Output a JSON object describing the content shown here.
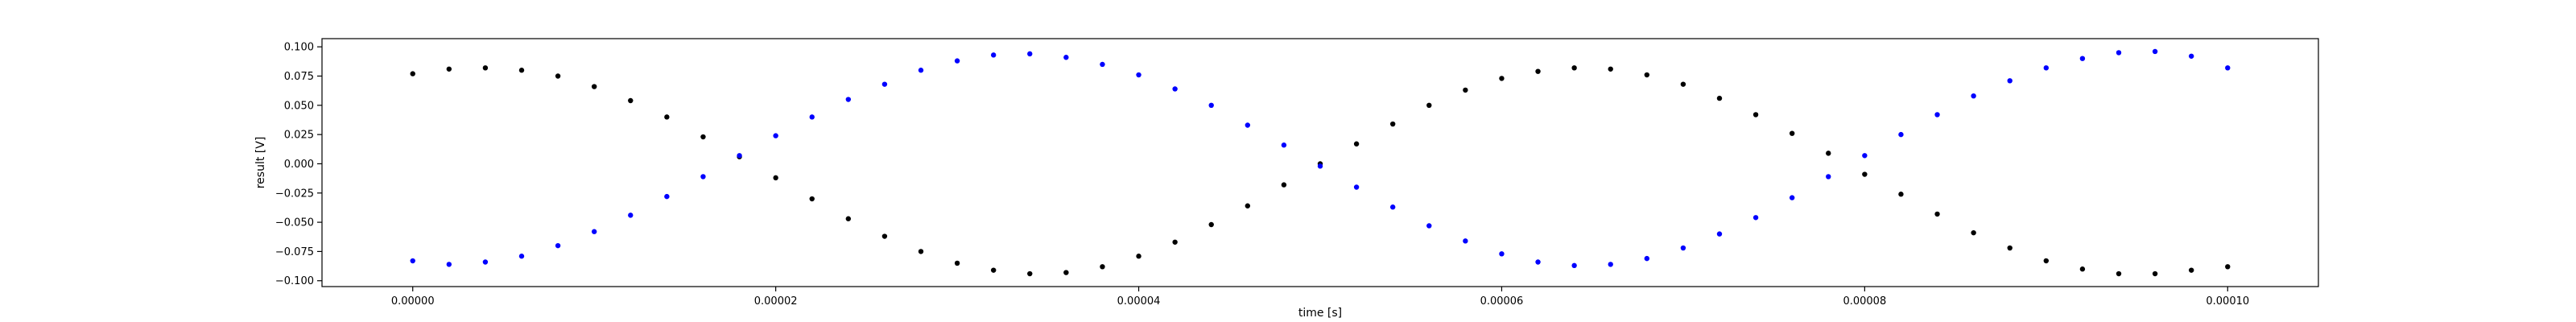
{
  "chart_data": {
    "type": "scatter",
    "title": "",
    "xlabel": "time [s]",
    "ylabel": "result [V]",
    "xlim": [
      -5e-06,
      0.000105
    ],
    "ylim": [
      -0.105,
      0.107
    ],
    "grid": false,
    "legend": "none",
    "x_ticks": [
      {
        "value": 0.0,
        "label": "0.00000"
      },
      {
        "value": 2e-05,
        "label": "0.00002"
      },
      {
        "value": 4e-05,
        "label": "0.00004"
      },
      {
        "value": 6e-05,
        "label": "0.00006"
      },
      {
        "value": 8e-05,
        "label": "0.00008"
      },
      {
        "value": 0.0001,
        "label": "0.00010"
      }
    ],
    "y_ticks": [
      {
        "value": 0.1,
        "label": "0.100"
      },
      {
        "value": 0.075,
        "label": "0.075"
      },
      {
        "value": 0.05,
        "label": "0.050"
      },
      {
        "value": 0.025,
        "label": "0.025"
      },
      {
        "value": 0.0,
        "label": "0.000"
      },
      {
        "value": -0.025,
        "label": "−0.025"
      },
      {
        "value": -0.05,
        "label": "−0.050"
      },
      {
        "value": -0.075,
        "label": "−0.075"
      },
      {
        "value": -0.1,
        "label": "−0.100"
      }
    ],
    "series": [
      {
        "color": "#000000",
        "marker": "dot",
        "x": [
          0.0,
          2e-06,
          4e-06,
          6e-06,
          8e-06,
          1e-05,
          1.2e-05,
          1.4e-05,
          1.6e-05,
          1.8e-05,
          2e-05,
          2.2e-05,
          2.4e-05,
          2.6e-05,
          2.8e-05,
          3e-05,
          3.2e-05,
          3.4e-05,
          3.6e-05,
          3.8e-05,
          4e-05,
          4.2e-05,
          4.4e-05,
          4.6e-05,
          4.8e-05,
          5e-05,
          5.2e-05,
          5.4e-05,
          5.6e-05,
          5.8e-05,
          6e-05,
          6.2e-05,
          6.4e-05,
          6.6e-05,
          6.8e-05,
          7e-05,
          7.2e-05,
          7.4e-05,
          7.6e-05,
          7.8e-05,
          8e-05,
          8.2e-05,
          8.4e-05,
          8.6e-05,
          8.8e-05,
          9e-05,
          9.2e-05,
          9.4e-05,
          9.6e-05,
          9.8e-05,
          0.0001
        ],
        "y": [
          0.077,
          0.081,
          0.082,
          0.08,
          0.075,
          0.066,
          0.054,
          0.04,
          0.023,
          0.006,
          -0.012,
          -0.03,
          -0.047,
          -0.062,
          -0.075,
          -0.085,
          -0.091,
          -0.094,
          -0.093,
          -0.088,
          -0.079,
          -0.067,
          -0.052,
          -0.036,
          -0.018,
          0.0,
          0.017,
          0.034,
          0.05,
          0.063,
          0.073,
          0.079,
          0.082,
          0.081,
          0.076,
          0.068,
          0.056,
          0.042,
          0.026,
          0.009,
          -0.009,
          -0.026,
          -0.043,
          -0.059,
          -0.072,
          -0.083,
          -0.09,
          -0.094,
          -0.094,
          -0.091,
          -0.088
        ]
      },
      {
        "color": "#0000ff",
        "marker": "dot",
        "x": [
          0.0,
          2e-06,
          4e-06,
          6e-06,
          8e-06,
          1e-05,
          1.2e-05,
          1.4e-05,
          1.6e-05,
          1.8e-05,
          2e-05,
          2.2e-05,
          2.4e-05,
          2.6e-05,
          2.8e-05,
          3e-05,
          3.2e-05,
          3.4e-05,
          3.6e-05,
          3.8e-05,
          4e-05,
          4.2e-05,
          4.4e-05,
          4.6e-05,
          4.8e-05,
          5e-05,
          5.2e-05,
          5.4e-05,
          5.6e-05,
          5.8e-05,
          6e-05,
          6.2e-05,
          6.4e-05,
          6.6e-05,
          6.8e-05,
          7e-05,
          7.2e-05,
          7.4e-05,
          7.6e-05,
          7.8e-05,
          8e-05,
          8.2e-05,
          8.4e-05,
          8.6e-05,
          8.8e-05,
          9e-05,
          9.2e-05,
          9.4e-05,
          9.6e-05,
          9.8e-05,
          0.0001
        ],
        "y": [
          -0.083,
          -0.086,
          -0.084,
          -0.079,
          -0.07,
          -0.058,
          -0.044,
          -0.028,
          -0.011,
          0.007,
          0.024,
          0.04,
          0.055,
          0.068,
          0.08,
          0.088,
          0.093,
          0.094,
          0.091,
          0.085,
          0.076,
          0.064,
          0.05,
          0.033,
          0.016,
          -0.002,
          -0.02,
          -0.037,
          -0.053,
          -0.066,
          -0.077,
          -0.084,
          -0.087,
          -0.086,
          -0.081,
          -0.072,
          -0.06,
          -0.046,
          -0.029,
          -0.011,
          0.007,
          0.025,
          0.042,
          0.058,
          0.071,
          0.082,
          0.09,
          0.095,
          0.096,
          0.092,
          0.082
        ]
      }
    ]
  }
}
